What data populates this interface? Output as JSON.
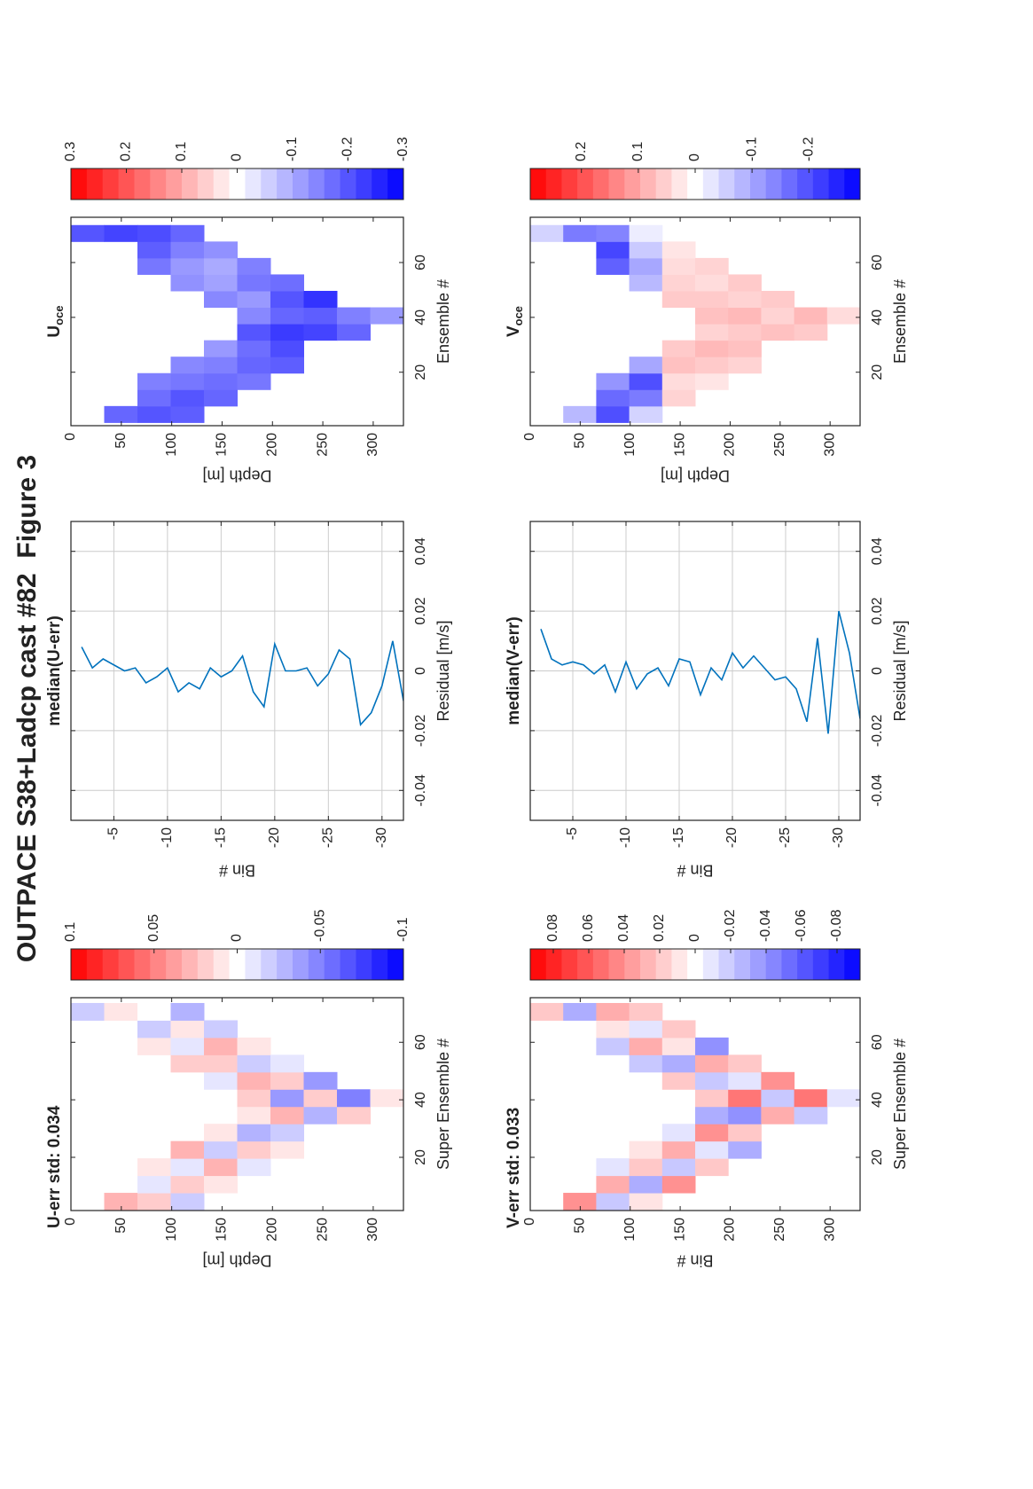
{
  "title": "OUTPACE S38+Ladcp cast #82  Figure 3",
  "chart_data": [
    {
      "type": "heatmap",
      "title": [
        "U-err std: 0.034"
      ],
      "xlabel": "Super Ensemble #",
      "ylabel": "Depth [m]",
      "xlim": [
        1.5,
        75.5
      ],
      "ylim": [
        0,
        330
      ],
      "xticks": [
        20,
        40,
        60
      ],
      "yticks": [
        0,
        50,
        100,
        150,
        200,
        250,
        300
      ],
      "y_reversed": true,
      "x_edges": [
        1.5,
        7.5,
        13.5,
        19.5,
        25.5,
        31.5,
        37.5,
        43.5,
        49.5,
        55.5,
        61.5,
        67.5,
        73.5
      ],
      "y_edges": [
        0,
        33,
        66,
        99,
        132,
        165,
        198,
        231,
        264,
        297,
        330
      ],
      "clim": [
        -0.1,
        0.1
      ],
      "cticks": [
        -0.1,
        -0.05,
        0,
        0.05,
        0.1
      ],
      "colormap": [
        "#0000ff",
        "#ffffff",
        "#ff0000"
      ],
      "z": [
        [
          null,
          null,
          null,
          null,
          null,
          null,
          null,
          null,
          null,
          null,
          null,
          -0.02
        ],
        [
          0.03,
          null,
          null,
          null,
          null,
          null,
          null,
          null,
          null,
          null,
          null,
          0.01
        ],
        [
          0.02,
          -0.01,
          0.01,
          null,
          null,
          null,
          null,
          null,
          null,
          0.01,
          -0.02,
          0
        ],
        [
          -0.02,
          0.02,
          -0.01,
          0.03,
          null,
          null,
          null,
          null,
          0.02,
          -0.01,
          0.01,
          -0.03
        ],
        [
          null,
          0.01,
          0.03,
          -0.02,
          0.01,
          null,
          null,
          -0.01,
          0.02,
          0.03,
          -0.02,
          null
        ],
        [
          null,
          null,
          -0.01,
          0.02,
          -0.03,
          0.01,
          0.02,
          0.03,
          -0.02,
          0.01,
          null,
          null
        ],
        [
          null,
          null,
          null,
          0.01,
          -0.02,
          0.03,
          -0.04,
          0.02,
          -0.01,
          null,
          null,
          null
        ],
        [
          null,
          null,
          null,
          null,
          null,
          -0.03,
          0.02,
          -0.04,
          null,
          null,
          null,
          null
        ],
        [
          null,
          null,
          null,
          null,
          null,
          0.02,
          -0.05,
          null,
          null,
          null,
          null,
          null
        ],
        [
          null,
          null,
          null,
          null,
          null,
          null,
          0.01,
          null,
          null,
          null,
          null,
          null
        ]
      ]
    },
    {
      "type": "line",
      "title": [
        "median(U-err)"
      ],
      "xlabel": "Residual [m/s]",
      "ylabel": "Bin #",
      "xlim": [
        -0.05,
        0.05
      ],
      "ylim": [
        -32,
        -1
      ],
      "xticks": [
        -0.04,
        -0.02,
        0,
        0.02,
        0.04
      ],
      "yticks": [
        -30,
        -25,
        -20,
        -15,
        -10,
        -5
      ],
      "grid": true,
      "color": "#0072bd",
      "bins": [
        -2,
        -3,
        -4,
        -5,
        -6,
        -7,
        -8,
        -9,
        -10,
        -11,
        -12,
        -13,
        -14,
        -15,
        -16,
        -17,
        -18,
        -19,
        -20,
        -21,
        -22,
        -23,
        -24,
        -25,
        -26,
        -27,
        -28,
        -29,
        -30,
        -31,
        -32
      ],
      "values": [
        0.008,
        0.001,
        0.004,
        0.002,
        0,
        0.001,
        -0.004,
        -0.002,
        0.001,
        -0.007,
        -0.004,
        -0.006,
        0.001,
        -0.002,
        0,
        0.005,
        -0.007,
        -0.012,
        0.009,
        0,
        0,
        0.001,
        -0.005,
        -0.001,
        0.007,
        0.004,
        -0.018,
        -0.014,
        -0.005,
        0.01,
        -0.01
      ]
    },
    {
      "type": "heatmap",
      "title": [
        "U",
        "oce"
      ],
      "xlabel": "Ensemble #",
      "ylabel": "Depth [m]",
      "xlim": [
        0.5,
        76.5
      ],
      "ylim": [
        0,
        330
      ],
      "xticks": [
        20,
        40,
        60
      ],
      "yticks": [
        0,
        50,
        100,
        150,
        200,
        250,
        300
      ],
      "y_reversed": true,
      "x_edges": [
        1.5,
        7.5,
        13.5,
        19.5,
        25.5,
        31.5,
        37.5,
        43.5,
        49.5,
        55.5,
        61.5,
        67.5,
        73.5
      ],
      "y_edges": [
        0,
        33,
        66,
        99,
        132,
        165,
        198,
        231,
        264,
        297,
        330
      ],
      "clim": [
        -0.3,
        0.3
      ],
      "cticks": [
        -0.3,
        -0.2,
        -0.1,
        0,
        0.1,
        0.2,
        0.3
      ],
      "colormap": [
        "#0000ff",
        "#ffffff",
        "#ff0000"
      ],
      "z": [
        [
          null,
          null,
          null,
          null,
          null,
          null,
          null,
          null,
          null,
          null,
          null,
          -0.2
        ],
        [
          -0.18,
          null,
          null,
          null,
          null,
          null,
          null,
          null,
          null,
          null,
          null,
          -0.22
        ],
        [
          -0.2,
          -0.17,
          -0.15,
          null,
          null,
          null,
          null,
          null,
          null,
          -0.16,
          -0.19,
          -0.21
        ],
        [
          -0.19,
          -0.2,
          -0.16,
          -0.14,
          null,
          null,
          null,
          null,
          -0.13,
          -0.12,
          -0.15,
          -0.18
        ],
        [
          null,
          -0.18,
          -0.17,
          -0.15,
          -0.12,
          null,
          null,
          -0.14,
          -0.11,
          -0.1,
          -0.13,
          null
        ],
        [
          null,
          null,
          -0.16,
          -0.18,
          -0.17,
          -0.2,
          -0.14,
          -0.12,
          -0.16,
          -0.15,
          null,
          null
        ],
        [
          null,
          null,
          null,
          -0.19,
          -0.21,
          -0.23,
          -0.18,
          -0.2,
          -0.17,
          null,
          null,
          null
        ],
        [
          null,
          null,
          null,
          null,
          null,
          -0.22,
          -0.19,
          -0.24,
          null,
          null,
          null,
          null
        ],
        [
          null,
          null,
          null,
          null,
          null,
          -0.18,
          -0.15,
          null,
          null,
          null,
          null,
          null
        ],
        [
          null,
          null,
          null,
          null,
          null,
          null,
          -0.12,
          null,
          null,
          null,
          null,
          null
        ]
      ]
    },
    {
      "type": "heatmap",
      "title": [
        "V-err std: 0.033"
      ],
      "xlabel": "Super Ensemble #",
      "ylabel": "Bin #",
      "xlim": [
        1.5,
        75.5
      ],
      "ylim": [
        0,
        330
      ],
      "xticks": [
        20,
        40,
        60
      ],
      "yticks": [
        0,
        50,
        100,
        150,
        200,
        250,
        300
      ],
      "y_reversed": true,
      "x_edges": [
        1.5,
        7.5,
        13.5,
        19.5,
        25.5,
        31.5,
        37.5,
        43.5,
        49.5,
        55.5,
        61.5,
        67.5,
        73.5
      ],
      "y_edges": [
        0,
        33,
        66,
        99,
        132,
        165,
        198,
        231,
        264,
        297,
        330
      ],
      "clim": [
        -0.093,
        0.093
      ],
      "cticks": [
        -0.08,
        -0.06,
        -0.04,
        -0.02,
        0,
        0.02,
        0.04,
        0.06,
        0.08
      ],
      "colormap": [
        "#0000ff",
        "#ffffff",
        "#ff0000"
      ],
      "z": [
        [
          null,
          null,
          null,
          null,
          null,
          null,
          null,
          null,
          null,
          null,
          null,
          0.02
        ],
        [
          0.04,
          null,
          null,
          null,
          null,
          null,
          null,
          null,
          null,
          null,
          null,
          -0.03
        ],
        [
          -0.02,
          0.03,
          -0.01,
          null,
          null,
          null,
          null,
          null,
          null,
          -0.02,
          0.01,
          0.03
        ],
        [
          0.01,
          -0.03,
          0.02,
          0.01,
          null,
          null,
          null,
          null,
          -0.02,
          0.03,
          -0.01,
          0.02
        ],
        [
          null,
          0.04,
          -0.02,
          0.03,
          -0.01,
          null,
          null,
          0.02,
          -0.03,
          0.01,
          0.02,
          null
        ],
        [
          null,
          null,
          0.02,
          -0.01,
          0.04,
          -0.03,
          0.02,
          -0.02,
          0.03,
          -0.04,
          null,
          null
        ],
        [
          null,
          null,
          null,
          -0.03,
          0.02,
          -0.04,
          0.05,
          -0.01,
          0.02,
          null,
          null,
          null
        ],
        [
          null,
          null,
          null,
          null,
          null,
          0.03,
          -0.02,
          0.04,
          null,
          null,
          null,
          null
        ],
        [
          null,
          null,
          null,
          null,
          null,
          -0.02,
          0.05,
          null,
          null,
          null,
          null,
          null
        ],
        [
          null,
          null,
          null,
          null,
          null,
          null,
          -0.01,
          null,
          null,
          null,
          null,
          null
        ]
      ]
    },
    {
      "type": "line",
      "title": [
        "median(V-err)"
      ],
      "xlabel": "Residual [m/s]",
      "ylabel": "Bin #",
      "xlim": [
        -0.05,
        0.05
      ],
      "ylim": [
        -32,
        -1
      ],
      "xticks": [
        -0.04,
        -0.02,
        0,
        0.02,
        0.04
      ],
      "yticks": [
        -30,
        -25,
        -20,
        -15,
        -10,
        -5
      ],
      "grid": true,
      "color": "#0072bd",
      "bins": [
        -2,
        -3,
        -4,
        -5,
        -6,
        -7,
        -8,
        -9,
        -10,
        -11,
        -12,
        -13,
        -14,
        -15,
        -16,
        -17,
        -18,
        -19,
        -20,
        -21,
        -22,
        -23,
        -24,
        -25,
        -26,
        -27,
        -28,
        -29,
        -30,
        -31,
        -32
      ],
      "values": [
        0.014,
        0.004,
        0.002,
        0.003,
        0.002,
        -0.001,
        0.002,
        -0.007,
        0.003,
        -0.006,
        -0.001,
        0.001,
        -0.005,
        0.004,
        0.003,
        -0.008,
        0.001,
        -0.003,
        0.006,
        0.001,
        0.005,
        0.001,
        -0.003,
        -0.002,
        -0.006,
        -0.017,
        0.011,
        -0.021,
        0.02,
        0.006,
        -0.016
      ]
    },
    {
      "type": "heatmap",
      "title": [
        "V",
        "oce"
      ],
      "xlabel": "Ensemble #",
      "ylabel": "Depth [m]",
      "xlim": [
        0.5,
        76.5
      ],
      "ylim": [
        0,
        330
      ],
      "xticks": [
        20,
        40,
        60
      ],
      "yticks": [
        0,
        50,
        100,
        150,
        200,
        250,
        300
      ],
      "y_reversed": true,
      "x_edges": [
        1.5,
        7.5,
        13.5,
        19.5,
        25.5,
        31.5,
        37.5,
        43.5,
        49.5,
        55.5,
        61.5,
        67.5,
        73.5
      ],
      "y_edges": [
        0,
        33,
        66,
        99,
        132,
        165,
        198,
        231,
        264,
        297,
        330
      ],
      "clim": [
        -0.29,
        0.29
      ],
      "cticks": [
        -0.2,
        -0.1,
        0,
        0.1,
        0.2
      ],
      "colormap": [
        "#0000ff",
        "#ffffff",
        "#ff0000"
      ],
      "z": [
        [
          null,
          null,
          null,
          null,
          null,
          null,
          null,
          null,
          null,
          null,
          null,
          -0.05
        ],
        [
          -0.08,
          null,
          null,
          null,
          null,
          null,
          null,
          null,
          null,
          null,
          null,
          -0.15
        ],
        [
          -0.2,
          -0.17,
          -0.12,
          null,
          null,
          null,
          null,
          null,
          null,
          -0.18,
          -0.21,
          -0.14
        ],
        [
          -0.05,
          -0.15,
          -0.2,
          -0.1,
          null,
          null,
          null,
          null,
          -0.08,
          -0.1,
          -0.06,
          -0.02
        ],
        [
          null,
          0.05,
          0.04,
          0.07,
          0.06,
          null,
          null,
          0.06,
          0.05,
          0.04,
          0.03,
          null
        ],
        [
          null,
          null,
          0.03,
          0.06,
          0.08,
          0.05,
          0.07,
          0.06,
          0.04,
          0.05,
          null,
          null
        ],
        [
          null,
          null,
          null,
          0.05,
          0.07,
          0.06,
          0.08,
          0.05,
          0.06,
          null,
          null,
          null
        ],
        [
          null,
          null,
          null,
          null,
          null,
          0.07,
          0.05,
          0.06,
          null,
          null,
          null,
          null
        ],
        [
          null,
          null,
          null,
          null,
          null,
          0.06,
          0.08,
          null,
          null,
          null,
          null,
          null
        ],
        [
          null,
          null,
          null,
          null,
          null,
          null,
          0.04,
          null,
          null,
          null,
          null,
          null
        ]
      ]
    }
  ]
}
